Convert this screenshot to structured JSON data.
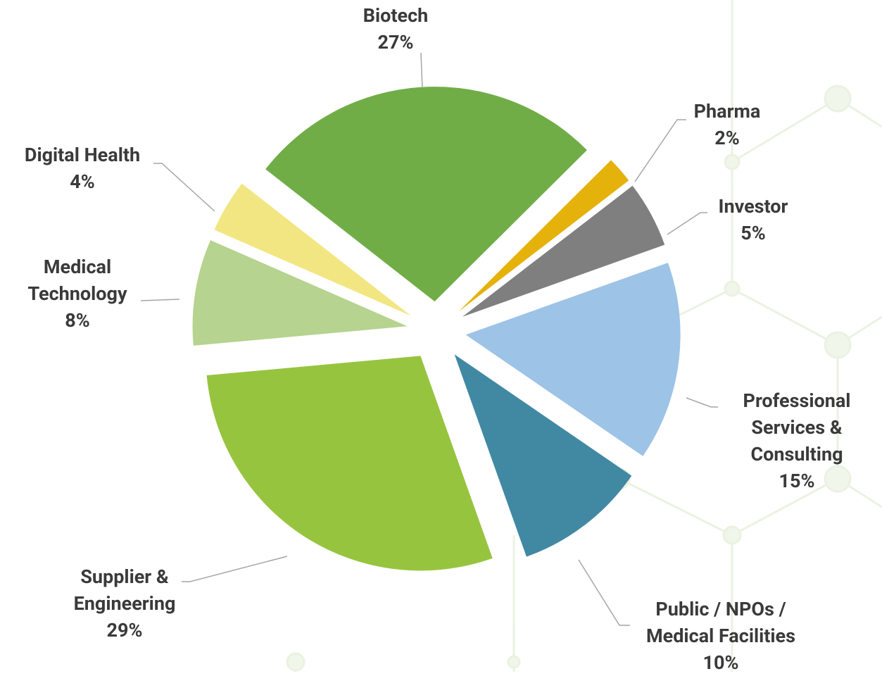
{
  "chart_data": {
    "type": "pie",
    "categories": [
      "Biotech",
      "Pharma",
      "Investor",
      "Professional Services & Consulting",
      "Public / NPOs / Medical Facilities",
      "Supplier & Engineering",
      "Medical Technology",
      "Digital Health"
    ],
    "values": [
      27,
      2,
      5,
      15,
      10,
      29,
      8,
      4
    ],
    "value_labels": [
      "27%",
      "2%",
      "5%",
      "15%",
      "10%",
      "29%",
      "8%",
      "4%"
    ],
    "colors": [
      "#70ad47",
      "#e5b10b",
      "#7f7f7f",
      "#9dc3e6",
      "#4189a3",
      "#97c43f",
      "#b6d38f",
      "#f2e682"
    ]
  }
}
